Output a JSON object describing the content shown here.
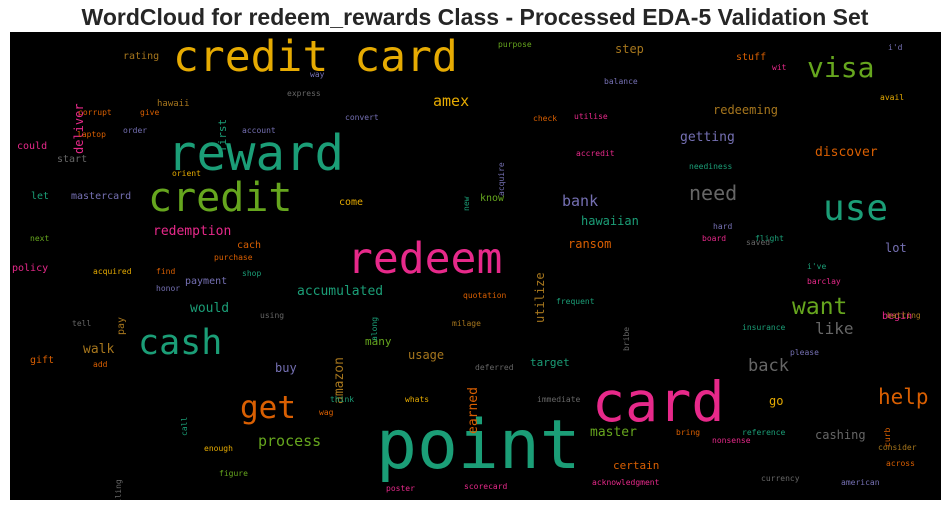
{
  "chart_data": {
    "type": "wordcloud",
    "title": "WordCloud for redeem_rewards Class - Processed EDA-5 Validation Set",
    "background": "#000000",
    "palette": [
      "#1b9e77",
      "#d95f02",
      "#7570b3",
      "#e7298a",
      "#66a61e",
      "#e6ab02",
      "#a6761d",
      "#666666"
    ],
    "words": [
      {
        "text": "credit card",
        "color": "#e6ab02"
      },
      {
        "text": "reward",
        "color": "#1b9e77"
      },
      {
        "text": "credit",
        "color": "#66a61e"
      },
      {
        "text": "redeem",
        "color": "#e7298a"
      },
      {
        "text": "point",
        "color": "#1b9e77"
      },
      {
        "text": "card",
        "color": "#e7298a"
      },
      {
        "text": "cash",
        "color": "#1b9e77"
      },
      {
        "text": "get",
        "color": "#d95f02"
      },
      {
        "text": "use",
        "color": "#1b9e77"
      },
      {
        "text": "visa",
        "color": "#66a61e"
      },
      {
        "text": "want",
        "color": "#66a61e"
      },
      {
        "text": "help",
        "color": "#d95f02"
      },
      {
        "text": "need",
        "color": "#666666"
      },
      {
        "text": "back",
        "color": "#666666"
      },
      {
        "text": "like",
        "color": "#666666"
      },
      {
        "text": "amex",
        "color": "#e6ab02"
      },
      {
        "text": "process",
        "color": "#66a61e"
      },
      {
        "text": "bank",
        "color": "#7570b3"
      },
      {
        "text": "accumulated",
        "color": "#1b9e77"
      },
      {
        "text": "redemption",
        "color": "#e7298a"
      },
      {
        "text": "discover",
        "color": "#d95f02"
      },
      {
        "text": "getting",
        "color": "#7570b3"
      },
      {
        "text": "redeeming",
        "color": "#a6761d"
      },
      {
        "text": "earned",
        "color": "#d95f02"
      },
      {
        "text": "amazon",
        "color": "#a6761d"
      },
      {
        "text": "walk",
        "color": "#a6761d"
      },
      {
        "text": "would",
        "color": "#1b9e77"
      },
      {
        "text": "usage",
        "color": "#a6761d"
      },
      {
        "text": "master",
        "color": "#66a61e"
      },
      {
        "text": "cashing",
        "color": "#666666"
      },
      {
        "text": "step",
        "color": "#a6761d"
      },
      {
        "text": "lot",
        "color": "#7570b3"
      },
      {
        "text": "buy",
        "color": "#7570b3"
      },
      {
        "text": "go",
        "color": "#e6ab02"
      },
      {
        "text": "hawaiian",
        "color": "#1b9e77"
      },
      {
        "text": "ransom",
        "color": "#d95f02"
      },
      {
        "text": "utilize",
        "color": "#a6761d"
      },
      {
        "text": "many",
        "color": "#66a61e"
      },
      {
        "text": "target",
        "color": "#1b9e77"
      },
      {
        "text": "certain",
        "color": "#d95f02"
      },
      {
        "text": "deliver",
        "color": "#e7298a"
      },
      {
        "text": "first",
        "color": "#1b9e77"
      },
      {
        "text": "rating",
        "color": "#a6761d"
      },
      {
        "text": "stuff",
        "color": "#d95f02"
      },
      {
        "text": "could",
        "color": "#e7298a"
      },
      {
        "text": "start",
        "color": "#666666"
      },
      {
        "text": "let",
        "color": "#1b9e77"
      },
      {
        "text": "mastercard",
        "color": "#7570b3"
      },
      {
        "text": "come",
        "color": "#e6ab02"
      },
      {
        "text": "know",
        "color": "#66a61e"
      },
      {
        "text": "cach",
        "color": "#d95f02"
      },
      {
        "text": "payment",
        "color": "#7570b3"
      },
      {
        "text": "policy",
        "color": "#e7298a"
      },
      {
        "text": "gift",
        "color": "#d95f02"
      },
      {
        "text": "pay",
        "color": "#a6761d"
      },
      {
        "text": "begin",
        "color": "#e7298a"
      },
      {
        "text": "purpose",
        "color": "#66a61e"
      },
      {
        "text": "i'd",
        "color": "#7570b3"
      },
      {
        "text": "way",
        "color": "#7570b3"
      },
      {
        "text": "wit",
        "color": "#e7298a"
      },
      {
        "text": "avail",
        "color": "#e6ab02"
      },
      {
        "text": "balance",
        "color": "#7570b3"
      },
      {
        "text": "hawaii",
        "color": "#a6761d"
      },
      {
        "text": "express",
        "color": "#666666"
      },
      {
        "text": "corrupt",
        "color": "#d95f02"
      },
      {
        "text": "give",
        "color": "#d95f02"
      },
      {
        "text": "laptop",
        "color": "#d95f02"
      },
      {
        "text": "order",
        "color": "#7570b3"
      },
      {
        "text": "account",
        "color": "#7570b3"
      },
      {
        "text": "convert",
        "color": "#7570b3"
      },
      {
        "text": "check",
        "color": "#d95f02"
      },
      {
        "text": "utilise",
        "color": "#e7298a"
      },
      {
        "text": "acquire",
        "color": "#7570b3"
      },
      {
        "text": "accredit",
        "color": "#e7298a"
      },
      {
        "text": "neediness",
        "color": "#1b9e77"
      },
      {
        "text": "orient",
        "color": "#e6ab02"
      },
      {
        "text": "new",
        "color": "#1b9e77"
      },
      {
        "text": "hard",
        "color": "#7570b3"
      },
      {
        "text": "board",
        "color": "#e7298a"
      },
      {
        "text": "flight",
        "color": "#1b9e77"
      },
      {
        "text": "saved",
        "color": "#666666"
      },
      {
        "text": "next",
        "color": "#66a61e"
      },
      {
        "text": "acquired",
        "color": "#e6ab02"
      },
      {
        "text": "find",
        "color": "#d95f02"
      },
      {
        "text": "purchase",
        "color": "#d95f02"
      },
      {
        "text": "shop",
        "color": "#1b9e77"
      },
      {
        "text": "i've",
        "color": "#1b9e77"
      },
      {
        "text": "barclay",
        "color": "#e7298a"
      },
      {
        "text": "honor",
        "color": "#7570b3"
      },
      {
        "text": "quotation",
        "color": "#d95f02"
      },
      {
        "text": "frequent",
        "color": "#1b9e77"
      },
      {
        "text": "batting",
        "color": "#a6761d"
      },
      {
        "text": "along",
        "color": "#1b9e77"
      },
      {
        "text": "tell",
        "color": "#666666"
      },
      {
        "text": "using",
        "color": "#666666"
      },
      {
        "text": "milage",
        "color": "#a6761d"
      },
      {
        "text": "bribe",
        "color": "#666666"
      },
      {
        "text": "insurance",
        "color": "#1b9e77"
      },
      {
        "text": "add",
        "color": "#d95f02"
      },
      {
        "text": "deferred",
        "color": "#666666"
      },
      {
        "text": "please",
        "color": "#7570b3"
      },
      {
        "text": "call",
        "color": "#1b9e77"
      },
      {
        "text": "think",
        "color": "#1b9e77"
      },
      {
        "text": "whats",
        "color": "#e6ab02"
      },
      {
        "text": "immediate",
        "color": "#666666"
      },
      {
        "text": "wag",
        "color": "#d95f02"
      },
      {
        "text": "curb",
        "color": "#d95f02"
      },
      {
        "text": "bring",
        "color": "#d95f02"
      },
      {
        "text": "reference",
        "color": "#1b9e77"
      },
      {
        "text": "nonsense",
        "color": "#e7298a"
      },
      {
        "text": "consider",
        "color": "#a6761d"
      },
      {
        "text": "calling",
        "color": "#666666"
      },
      {
        "text": "enough",
        "color": "#e6ab02"
      },
      {
        "text": "figure",
        "color": "#66a61e"
      },
      {
        "text": "across",
        "color": "#d95f02"
      },
      {
        "text": "currency",
        "color": "#666666"
      },
      {
        "text": "poster",
        "color": "#e7298a"
      },
      {
        "text": "scorecard",
        "color": "#e7298a"
      },
      {
        "text": "acknowledgment",
        "color": "#e7298a"
      },
      {
        "text": "american",
        "color": "#7570b3"
      }
    ]
  }
}
